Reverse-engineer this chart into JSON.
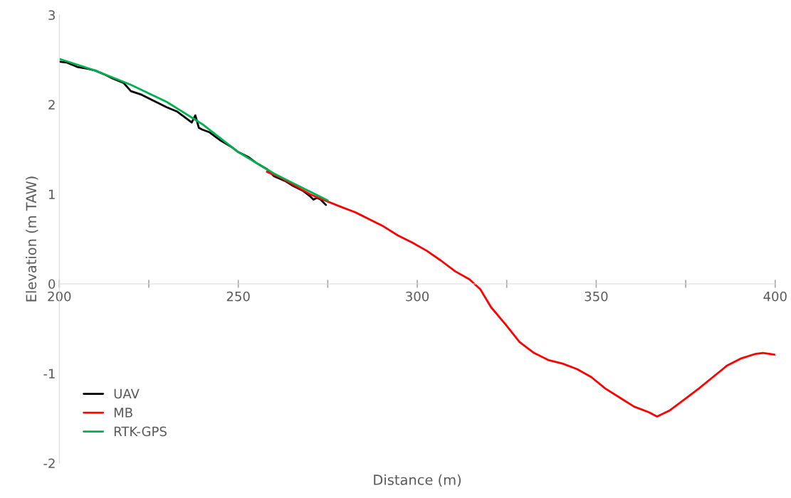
{
  "chart_data": {
    "type": "line",
    "xlabel": "Distance (m)",
    "ylabel": "Elevation (m TAW)",
    "xlim": [
      200,
      400
    ],
    "ylim": [
      -2,
      3
    ],
    "xticks": [
      200,
      {
        "value": 225,
        "label": null
      },
      250,
      {
        "value": 275,
        "label": null
      },
      300,
      {
        "value": 325,
        "label": null
      },
      350,
      {
        "value": 375,
        "label": null
      },
      400
    ],
    "yticks": [
      -2,
      -1,
      0,
      1,
      2,
      3
    ],
    "grid": false,
    "legend": "bottom left",
    "marker": "none",
    "line_style": "solid",
    "series": [
      {
        "name": "UAV",
        "color": "#000000",
        "x": [
          200,
          202,
          205,
          208,
          210,
          213,
          215,
          218,
          220,
          223,
          225,
          228,
          230,
          233,
          235,
          237,
          238,
          239,
          240,
          242,
          245,
          248,
          250,
          253,
          255,
          258,
          260,
          263,
          265,
          268,
          270,
          271,
          272,
          273,
          274.5
        ],
        "values": [
          2.48,
          2.47,
          2.42,
          2.4,
          2.38,
          2.33,
          2.29,
          2.24,
          2.15,
          2.11,
          2.07,
          2.01,
          1.97,
          1.92,
          1.86,
          1.8,
          1.88,
          1.74,
          1.72,
          1.69,
          1.6,
          1.53,
          1.47,
          1.41,
          1.35,
          1.28,
          1.2,
          1.15,
          1.1,
          1.04,
          0.98,
          0.94,
          0.96,
          0.94,
          0.88
        ]
      },
      {
        "name": "MB",
        "color": "#ff0000",
        "x": [
          258,
          262,
          266,
          270,
          273.6,
          278.6,
          282.6,
          286.6,
          290.6,
          294.6,
          298.6,
          302.6,
          306.6,
          310.6,
          314.6,
          317.6,
          320.6,
          324.6,
          328.6,
          332.6,
          336.6,
          340.6,
          344.6,
          348.6,
          352.6,
          356.6,
          360.6,
          364.6,
          367,
          370.6,
          374.6,
          378.6,
          382.6,
          386.6,
          390.6,
          394.6,
          396.6,
          400
        ],
        "values": [
          1.25,
          1.18,
          1.09,
          1.0,
          0.94,
          0.86,
          0.8,
          0.72,
          0.64,
          0.54,
          0.46,
          0.37,
          0.26,
          0.14,
          0.05,
          -0.06,
          -0.26,
          -0.45,
          -0.65,
          -0.77,
          -0.85,
          -0.89,
          -0.95,
          -1.04,
          -1.17,
          -1.27,
          -1.37,
          -1.43,
          -1.48,
          -1.41,
          -1.29,
          -1.17,
          -1.04,
          -0.91,
          -0.83,
          -0.78,
          -0.77,
          -0.79
        ]
      },
      {
        "name": "RTK-GPS",
        "color": "#00b050",
        "x": [
          200,
          210,
          220,
          230,
          240,
          250,
          260,
          265,
          270,
          275
        ],
        "values": [
          2.51,
          2.38,
          2.22,
          2.03,
          1.78,
          1.47,
          1.23,
          1.13,
          1.03,
          0.93
        ]
      }
    ]
  }
}
